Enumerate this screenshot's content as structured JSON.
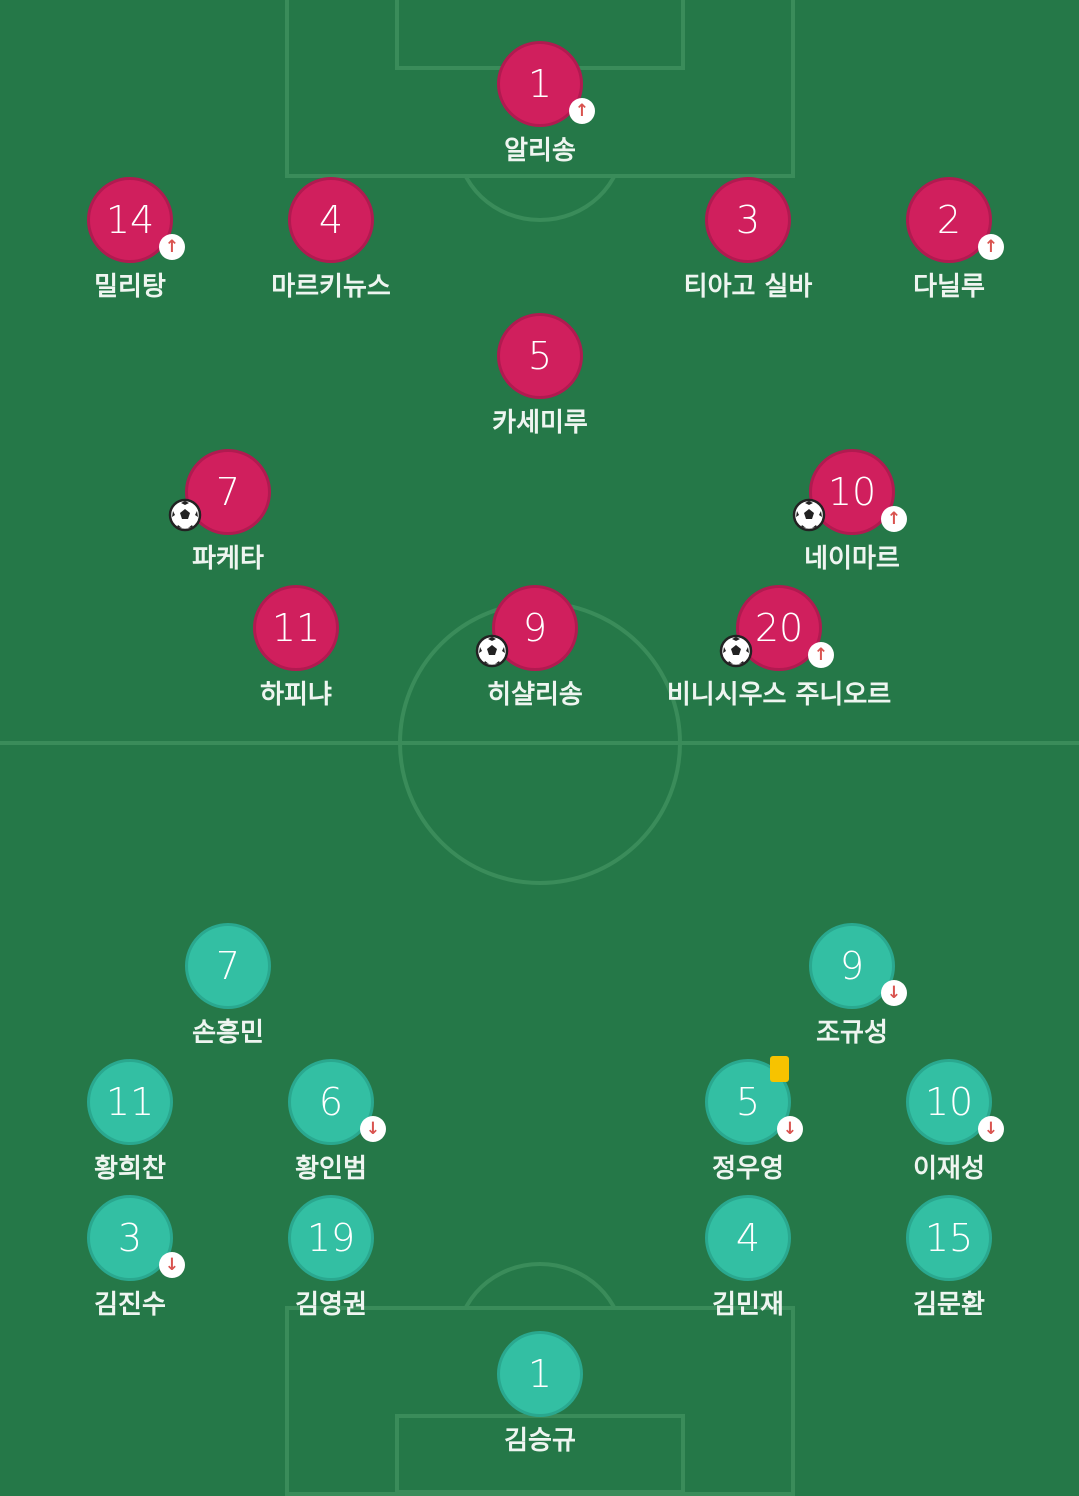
{
  "colors": {
    "pitch": "#257848",
    "home": "#d01f5d",
    "away": "#33bfa3",
    "card": "#f7c300",
    "sub_arrow": "#d9534f"
  },
  "home_team": {
    "players": [
      {
        "number": "1",
        "name": "알리송",
        "sub": "up",
        "goal": false
      },
      {
        "number": "14",
        "name": "밀리탕",
        "sub": "up",
        "goal": false
      },
      {
        "number": "4",
        "name": "마르키뉴스",
        "sub": null,
        "goal": false
      },
      {
        "number": "3",
        "name": "티아고 실바",
        "sub": null,
        "goal": false
      },
      {
        "number": "2",
        "name": "다닐루",
        "sub": "up",
        "goal": false
      },
      {
        "number": "5",
        "name": "카세미루",
        "sub": null,
        "goal": false
      },
      {
        "number": "7",
        "name": "파케타",
        "sub": null,
        "goal": true
      },
      {
        "number": "10",
        "name": "네이마르",
        "sub": "up",
        "goal": true
      },
      {
        "number": "11",
        "name": "하피냐",
        "sub": null,
        "goal": false
      },
      {
        "number": "9",
        "name": "히샬리송",
        "sub": null,
        "goal": true
      },
      {
        "number": "20",
        "name": "비니시우스 주니오르",
        "sub": "up",
        "goal": true
      }
    ]
  },
  "away_team": {
    "players": [
      {
        "number": "7",
        "name": "손흥민",
        "sub": null
      },
      {
        "number": "9",
        "name": "조규성",
        "sub": "down"
      },
      {
        "number": "11",
        "name": "황희찬",
        "sub": null
      },
      {
        "number": "6",
        "name": "황인범",
        "sub": "down"
      },
      {
        "number": "5",
        "name": "정우영",
        "sub": "down",
        "yellow_card": true
      },
      {
        "number": "10",
        "name": "이재성",
        "sub": "down"
      },
      {
        "number": "3",
        "name": "김진수",
        "sub": "down"
      },
      {
        "number": "19",
        "name": "김영권",
        "sub": null
      },
      {
        "number": "4",
        "name": "김민재",
        "sub": null
      },
      {
        "number": "15",
        "name": "김문환",
        "sub": null
      },
      {
        "number": "1",
        "name": "김승규",
        "sub": null
      }
    ]
  }
}
